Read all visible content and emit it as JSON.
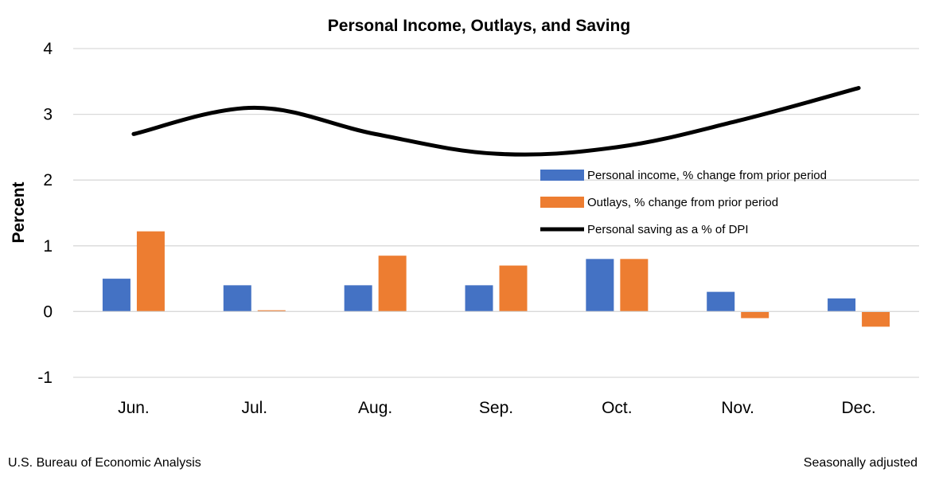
{
  "chart_data": {
    "type": "bar",
    "title": "Personal Income, Outlays, and Saving",
    "ylabel": "Percent",
    "xlabel": "",
    "ylim": [
      -1,
      4
    ],
    "yticks": [
      "-1",
      "0",
      "1",
      "2",
      "3",
      "4"
    ],
    "ytick_values": [
      -1,
      0,
      1,
      2,
      3,
      4
    ],
    "grid": "horizontal",
    "legend_position": "right",
    "categories": [
      "Jun.",
      "Jul.",
      "Aug.",
      "Sep.",
      "Oct.",
      "Nov.",
      "Dec."
    ],
    "series": [
      {
        "name": "Personal income, % change from prior period",
        "type": "bar",
        "color": "#4472c4",
        "values": [
          0.5,
          0.4,
          0.4,
          0.4,
          0.8,
          0.3,
          0.2
        ]
      },
      {
        "name": "Outlays, % change from prior period",
        "type": "bar",
        "color": "#ed7d31",
        "values": [
          1.22,
          0.02,
          0.85,
          0.7,
          0.8,
          -0.1,
          -0.23
        ]
      },
      {
        "name": "Personal saving as a % of DPI",
        "type": "line",
        "color": "#000000",
        "values": [
          2.7,
          3.1,
          2.7,
          2.4,
          2.5,
          2.9,
          3.4
        ]
      }
    ],
    "source": "U.S. Bureau of Economic Analysis",
    "note": "Seasonally adjusted"
  }
}
